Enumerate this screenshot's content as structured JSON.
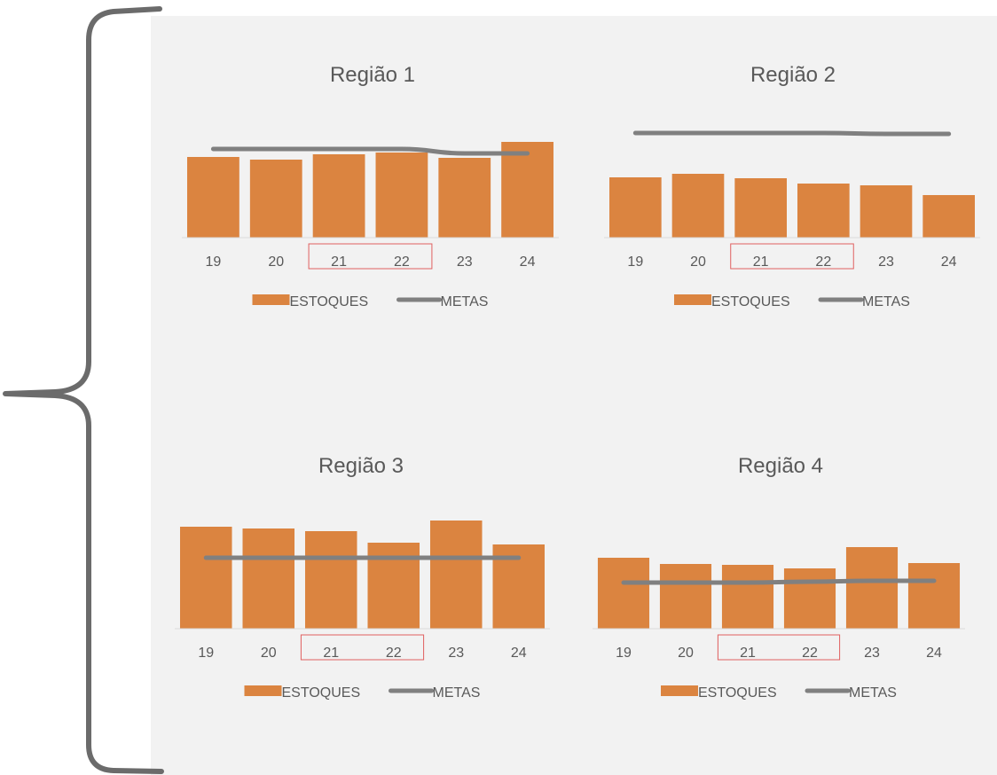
{
  "colors": {
    "panel_bg": "#f2f2f2",
    "bar": "#db8440",
    "line": "#808080",
    "axis": "#d9d9d9",
    "highlight_box": "#e06060",
    "brace": "#6b6b6b",
    "text": "#595959"
  },
  "legend": {
    "bar_label": "ESTOQUES",
    "line_label": "METAS"
  },
  "highlighted_categories": [
    "21",
    "22"
  ],
  "chart_data": [
    {
      "type": "bar",
      "title": "Região 1",
      "categories": [
        "19",
        "20",
        "21",
        "22",
        "23",
        "24"
      ],
      "series": [
        {
          "name": "ESTOQUES",
          "type": "bar",
          "values": [
            91,
            88,
            94,
            96,
            90,
            108
          ]
        },
        {
          "name": "METAS",
          "type": "line",
          "values": [
            100,
            100,
            100,
            100,
            95,
            95
          ]
        }
      ],
      "ylim": [
        0,
        140
      ]
    },
    {
      "type": "bar",
      "title": "Região 2",
      "categories": [
        "19",
        "20",
        "21",
        "22",
        "23",
        "24"
      ],
      "series": [
        {
          "name": "ESTOQUES",
          "type": "bar",
          "values": [
            68,
            72,
            67,
            61,
            59,
            48
          ]
        },
        {
          "name": "METAS",
          "type": "line",
          "values": [
            118,
            118,
            118,
            118,
            117,
            117
          ]
        }
      ],
      "ylim": [
        0,
        140
      ]
    },
    {
      "type": "bar",
      "title": "Região 3",
      "categories": [
        "19",
        "20",
        "21",
        "22",
        "23",
        "24"
      ],
      "series": [
        {
          "name": "ESTOQUES",
          "type": "bar",
          "values": [
            115,
            113,
            110,
            97,
            122,
            95
          ]
        },
        {
          "name": "METAS",
          "type": "line",
          "values": [
            80,
            80,
            80,
            80,
            80,
            80
          ]
        }
      ],
      "ylim": [
        0,
        140
      ]
    },
    {
      "type": "bar",
      "title": "Região 4",
      "categories": [
        "19",
        "20",
        "21",
        "22",
        "23",
        "24"
      ],
      "series": [
        {
          "name": "ESTOQUES",
          "type": "bar",
          "values": [
            80,
            73,
            72,
            68,
            92,
            74
          ]
        },
        {
          "name": "METAS",
          "type": "line",
          "values": [
            52,
            52,
            52,
            53,
            54,
            54
          ]
        }
      ],
      "ylim": [
        0,
        140
      ]
    }
  ]
}
